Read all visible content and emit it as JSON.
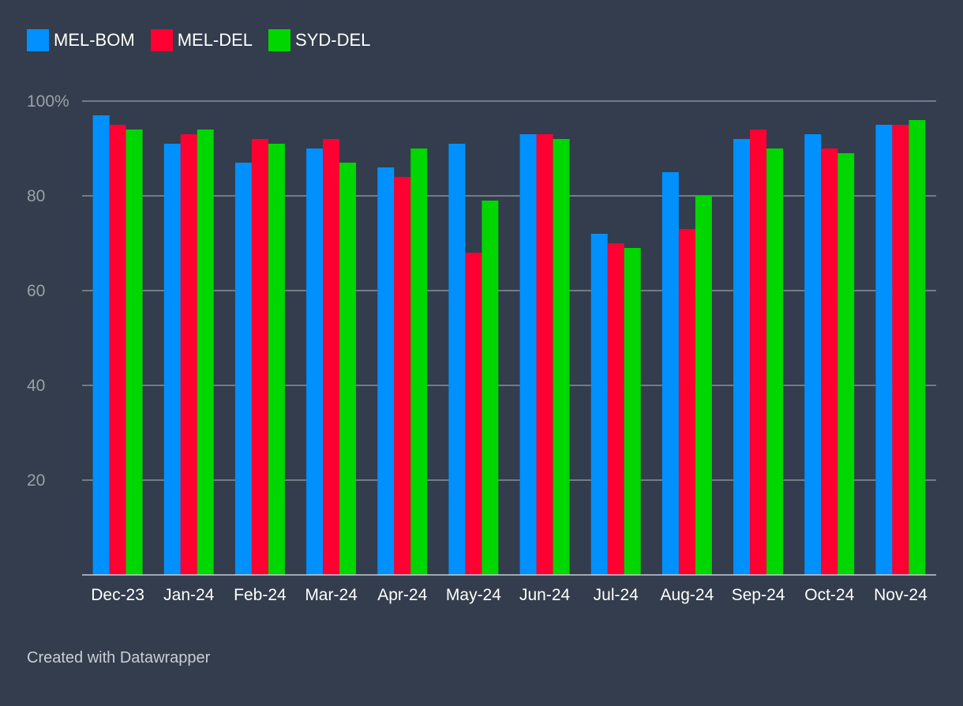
{
  "footer": {
    "credit": "Created with Datawrapper"
  },
  "colors": {
    "background": "#333d4d",
    "grid": "#8a9099",
    "tick_text": "#9aa0a8",
    "category_text": "#ffffff"
  },
  "chart_data": {
    "type": "bar",
    "categories": [
      "Dec-23",
      "Jan-24",
      "Feb-24",
      "Mar-24",
      "Apr-24",
      "May-24",
      "Jun-24",
      "Jul-24",
      "Aug-24",
      "Sep-24",
      "Oct-24",
      "Nov-24"
    ],
    "series": [
      {
        "name": "MEL-BOM",
        "color": "#0091ff",
        "values": [
          97,
          91,
          87,
          90,
          86,
          91,
          93,
          72,
          85,
          92,
          93,
          95
        ]
      },
      {
        "name": "MEL-DEL",
        "color": "#ff0033",
        "values": [
          95,
          93,
          92,
          92,
          84,
          68,
          93,
          70,
          73,
          94,
          90,
          95
        ]
      },
      {
        "name": "SYD-DEL",
        "color": "#00d600",
        "values": [
          94,
          94,
          91,
          87,
          90,
          79,
          92,
          69,
          80,
          90,
          89,
          96
        ]
      }
    ],
    "yticks": [
      {
        "value": 100,
        "label": "100%"
      },
      {
        "value": 80,
        "label": "80"
      },
      {
        "value": 60,
        "label": "60"
      },
      {
        "value": 40,
        "label": "40"
      },
      {
        "value": 20,
        "label": "20"
      }
    ],
    "ylim": [
      0,
      100
    ],
    "grid": true,
    "legend_position": "top-left"
  }
}
